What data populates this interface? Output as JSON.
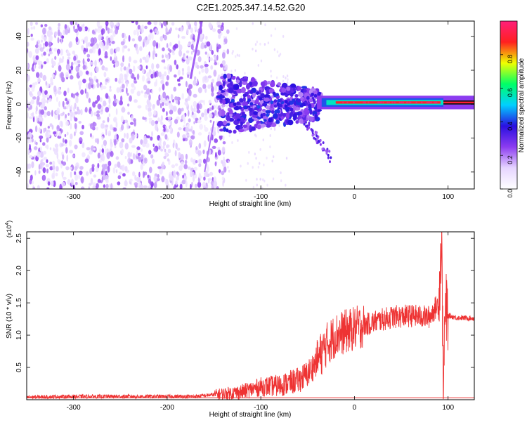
{
  "title": "C2E1.2025.347.14.52.G20",
  "colors": {
    "snr_line": "#ee3333",
    "colormap": [
      "#ffffff",
      "#e6d5ff",
      "#8c3cf0",
      "#2a10e0",
      "#00d0ff",
      "#00ff66",
      "#f0ff00",
      "#ff2020",
      "#ff1f7a"
    ]
  },
  "chart_data": [
    {
      "type": "heatmap",
      "title": "",
      "xlabel": "Height of straight line (km)",
      "ylabel": "Frequency (Hz)",
      "xlim": [
        -350,
        128
      ],
      "ylim": [
        -50,
        49
      ],
      "xticks": [
        -300,
        -200,
        -100,
        0,
        100
      ],
      "xtick_labels": [
        "-300",
        "-200",
        "-100",
        "0",
        "100"
      ],
      "yticks": [
        -40,
        -20,
        0,
        20,
        40
      ],
      "ytick_labels": [
        "-40",
        "-20",
        "0",
        "20",
        "40"
      ],
      "colorbar": {
        "label": "Normalized spectral amplitude",
        "range": [
          0,
          1
        ],
        "ticks": [
          0.0,
          0.2,
          0.4,
          0.6,
          0.8
        ],
        "tick_labels": [
          "0.0",
          "0.2",
          "0.4",
          "0.6",
          "0.8"
        ]
      },
      "description_regions": [
        {
          "x_range": [
            -350,
            -140
          ],
          "freq_range": [
            -50,
            49
          ],
          "amplitude": 0.15
        },
        {
          "x_range": [
            -140,
            -40
          ],
          "freq_range": [
            -15,
            15
          ],
          "amplitude": 0.3
        },
        {
          "x_range": [
            -40,
            95
          ],
          "freq_range": [
            -2,
            3
          ],
          "amplitude": 0.9
        }
      ]
    },
    {
      "type": "line",
      "title": "",
      "xlabel": "Height of straight line (km)",
      "ylabel": "SNR (10 * v/v)",
      "y_multiplier": "(x10",
      "y_multiplier_exp": "4",
      "y_multiplier_close": ")",
      "xlim": [
        -350,
        128
      ],
      "ylim": [
        0,
        2.6
      ],
      "xticks": [
        -300,
        -200,
        -100,
        0,
        100
      ],
      "xtick_labels": [
        "-300",
        "-200",
        "-100",
        "0",
        "100"
      ],
      "yticks": [
        0.5,
        1.0,
        1.5,
        2.0,
        2.5
      ],
      "ytick_labels": [
        "0.5",
        "1.0",
        "1.5",
        "2.0",
        "2.5"
      ],
      "series": [
        {
          "name": "SNR",
          "x": [
            -350,
            -300,
            -250,
            -200,
            -170,
            -150,
            -120,
            -100,
            -80,
            -60,
            -50,
            -40,
            -30,
            -20,
            -10,
            0,
            10,
            20,
            40,
            60,
            80,
            90,
            93,
            95,
            97,
            100,
            110,
            128
          ],
          "y": [
            0.04,
            0.05,
            0.05,
            0.05,
            0.05,
            0.08,
            0.12,
            0.2,
            0.22,
            0.3,
            0.4,
            0.6,
            0.85,
            1.0,
            1.05,
            1.1,
            1.15,
            1.2,
            1.28,
            1.3,
            1.28,
            1.5,
            2.5,
            0.3,
            1.4,
            1.3,
            1.27,
            1.26
          ]
        }
      ]
    }
  ]
}
